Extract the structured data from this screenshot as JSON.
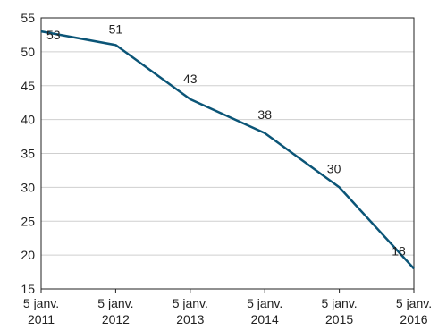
{
  "chart_data": {
    "type": "line",
    "title": "",
    "xlabel": "",
    "ylabel": "",
    "ylim": [
      15,
      55
    ],
    "yticks": [
      "15",
      "20",
      "25",
      "30",
      "35",
      "40",
      "45",
      "50",
      "55"
    ],
    "x_tick_labels": [
      [
        "5 janv.",
        "2011"
      ],
      [
        "5 janv.",
        "2012"
      ],
      [
        "5 janv.",
        "2013"
      ],
      [
        "5 janv.",
        "2014"
      ],
      [
        "5 janv.",
        "2015"
      ],
      [
        "5 janv.",
        "2016"
      ]
    ],
    "x": [
      "2011-01-05",
      "2012-01-05",
      "2013-01-05",
      "2014-01-05",
      "2015-01-05",
      "2016-01-05"
    ],
    "values": [
      53,
      51,
      43,
      38,
      30,
      18
    ],
    "data_labels": [
      "53",
      "51",
      "43",
      "38",
      "30",
      "18"
    ],
    "grid": "horizontal",
    "line_color": "#0b5577",
    "grid_color": "#cfcfcf",
    "axis_color": "#222222"
  }
}
